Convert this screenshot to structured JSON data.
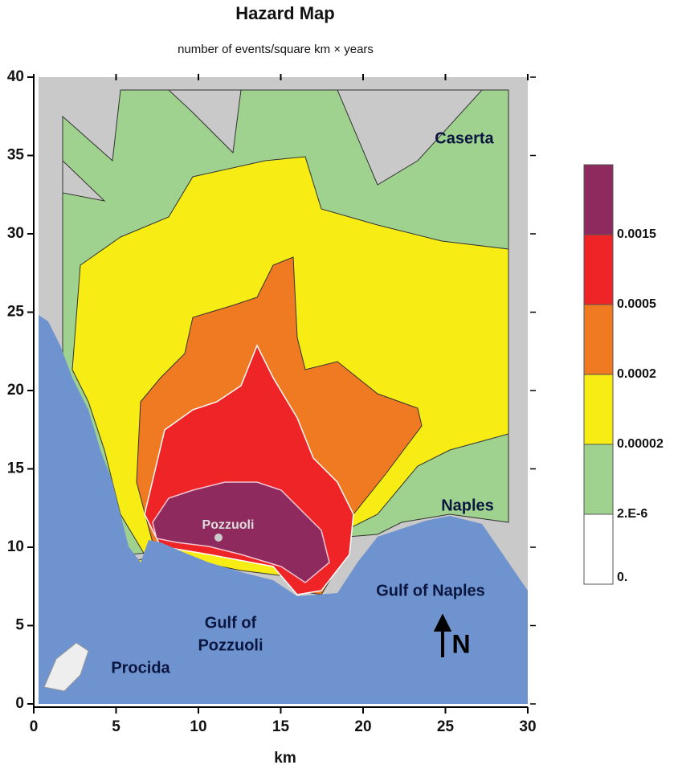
{
  "title": "Hazard Map",
  "subtitle": "number of events/square km × years",
  "x_axis": {
    "label": "km",
    "lim": [
      0,
      30
    ],
    "ticks": [
      0,
      5,
      10,
      15,
      20,
      25,
      30
    ]
  },
  "y_axis": {
    "lim": [
      0,
      40
    ],
    "ticks": [
      0,
      5,
      10,
      15,
      20,
      25,
      30,
      35,
      40
    ]
  },
  "places": {
    "caserta": "Caserta",
    "naples": "Naples",
    "gulf_of_naples": "Gulf of Naples",
    "gulf_of_pozzuoli": [
      "Gulf of",
      "Pozzuoli"
    ],
    "procida": "Procida",
    "pozzuoli": "Pozzuoli",
    "north": "N"
  },
  "colorbar": {
    "colors": [
      "#8e2a5e",
      "#ee2426",
      "#f07a21",
      "#f7ec13",
      "#9fd28e",
      "#ffffff"
    ],
    "labels": [
      0.0015,
      0.0005,
      0.0002,
      2e-05,
      {
        "value": 2e-06,
        "label": "2.E-6"
      },
      {
        "value": 0,
        "label": "0."
      }
    ]
  }
}
